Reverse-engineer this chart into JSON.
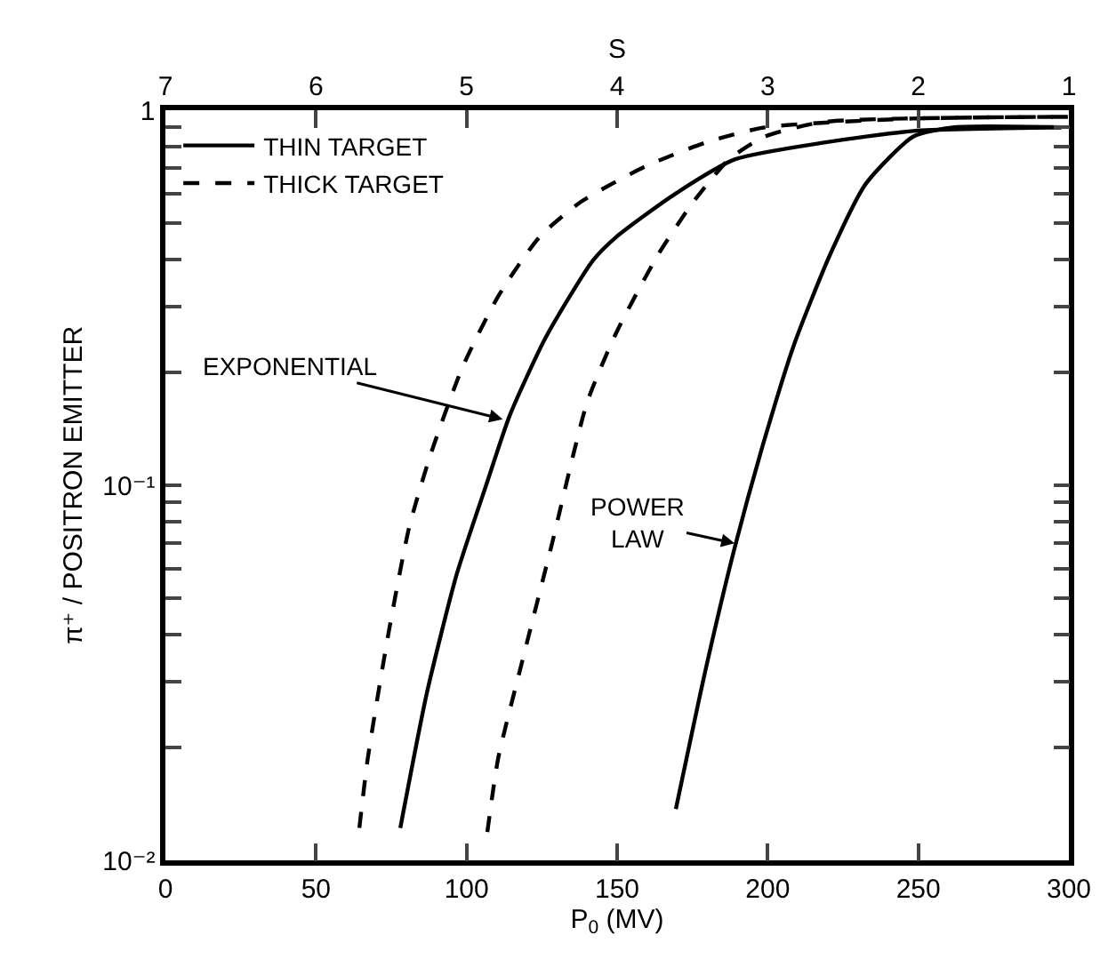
{
  "chart_data": {
    "type": "line",
    "xlabel": "P$_{0}$ (MV)",
    "ylabel": "π⁺ / POSITRON EMITTER",
    "x2label": "S",
    "xlim": [
      0,
      300
    ],
    "xticks": [
      0,
      50,
      100,
      150,
      200,
      250,
      300
    ],
    "x2lim": [
      7,
      1
    ],
    "x2ticks": [
      7,
      6,
      5,
      4,
      3,
      2,
      1
    ],
    "ylim": [
      0.01,
      1
    ],
    "log": "y",
    "grid": false,
    "legend": "top left",
    "marker": "none",
    "yticks": [
      {
        "value": 0.01,
        "label": "10⁻²"
      },
      {
        "value": 0.02,
        "label": null
      },
      {
        "value": 0.03,
        "label": null
      },
      {
        "value": 0.04,
        "label": null
      },
      {
        "value": 0.05,
        "label": null
      },
      {
        "value": 0.06,
        "label": null
      },
      {
        "value": 0.07,
        "label": null
      },
      {
        "value": 0.08,
        "label": null
      },
      {
        "value": 0.09,
        "label": null
      },
      {
        "value": 0.1,
        "label": "10⁻¹"
      },
      {
        "value": 0.2,
        "label": null
      },
      {
        "value": 0.3,
        "label": null
      },
      {
        "value": 0.4,
        "label": null
      },
      {
        "value": 0.5,
        "label": null
      },
      {
        "value": 0.6,
        "label": null
      },
      {
        "value": 0.7,
        "label": null
      },
      {
        "value": 0.8,
        "label": null
      },
      {
        "value": 0.9,
        "label": null
      },
      {
        "value": 1,
        "label": "1"
      }
    ],
    "series": [
      {
        "name": "THIN TARGET",
        "color": "#000000",
        "line_style": "solid",
        "x": [
          78,
          86.8,
          96.7,
          106.5,
          114.4,
          126.2,
          141.9,
          149.8,
          169.5,
          189.2,
          218.7,
          248.3,
          297.5
        ],
        "values": [
          0.0122,
          0.0279,
          0.0578,
          0.1,
          0.154,
          0.247,
          0.397,
          0.46,
          0.6,
          0.74,
          0.82,
          0.88,
          0.9
        ]
      },
      {
        "name": "THICK TARGET",
        "color": "#000000",
        "line_style": "dashed",
        "x": [
          64.4,
          67.2,
          74,
          80.9,
          87.8,
          98.6,
          110.5,
          124.2,
          138,
          159.7,
          179.4,
          199,
          248,
          300
        ],
        "values": [
          0.0122,
          0.0187,
          0.04,
          0.077,
          0.119,
          0.206,
          0.319,
          0.459,
          0.57,
          0.71,
          0.82,
          0.9,
          0.95,
          0.96
        ]
      },
      {
        "color": "#000000",
        "line_style": "solid",
        "x": [
          169.5,
          179.4,
          189.2,
          199,
          208.9,
          220.7,
          232.6,
          248.3,
          262,
          297.5
        ],
        "values": [
          0.0137,
          0.0323,
          0.069,
          0.133,
          0.239,
          0.412,
          0.637,
          0.85,
          0.9,
          0.9
        ]
      },
      {
        "color": "#000000",
        "line_style": "dashed",
        "x": [
          106.9,
          110.5,
          118.3,
          128.2,
          140,
          149.8,
          163.6,
          175.4,
          187.2,
          199,
          218.5,
          300
        ],
        "values": [
          0.0119,
          0.0187,
          0.0335,
          0.069,
          0.166,
          0.256,
          0.412,
          0.571,
          0.74,
          0.85,
          0.93,
          0.96
        ]
      }
    ],
    "annotations": [
      {
        "text": "EXPONENTIAL",
        "x": 112,
        "y": 0.15
      },
      {
        "text": "POWER\nLAW",
        "x": 189,
        "y": 0.07
      }
    ]
  }
}
